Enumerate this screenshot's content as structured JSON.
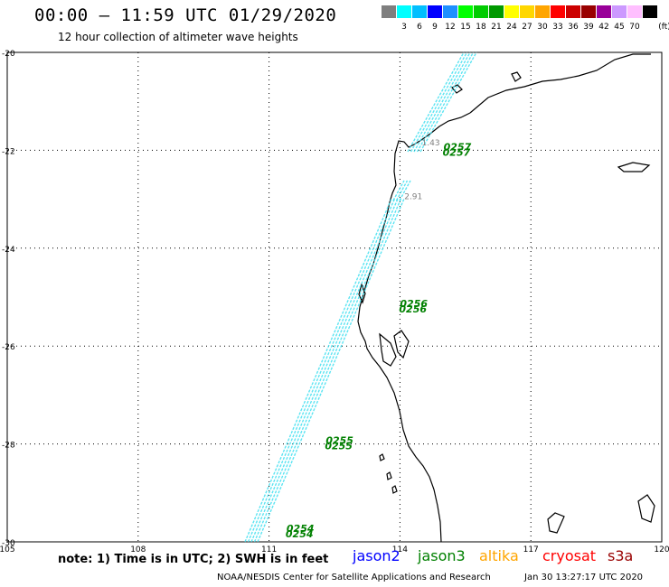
{
  "header": {
    "title": "00:00 – 11:59 UTC 01/29/2020",
    "subtitle": "12 hour collection of altimeter wave heights"
  },
  "scale": {
    "unit": "(ft)",
    "bins": [
      {
        "label": "",
        "color": "#7f7f7f"
      },
      {
        "label": "3",
        "color": "#00ffff"
      },
      {
        "label": "6",
        "color": "#00bfff"
      },
      {
        "label": "9",
        "color": "#0000ff"
      },
      {
        "label": "12",
        "color": "#1e90ff"
      },
      {
        "label": "15",
        "color": "#00ff00"
      },
      {
        "label": "18",
        "color": "#00cc00"
      },
      {
        "label": "21",
        "color": "#009900"
      },
      {
        "label": "24",
        "color": "#ffff00"
      },
      {
        "label": "27",
        "color": "#ffd700"
      },
      {
        "label": "30",
        "color": "#ffa500"
      },
      {
        "label": "33",
        "color": "#ff0000"
      },
      {
        "label": "36",
        "color": "#cc0000"
      },
      {
        "label": "39",
        "color": "#990000"
      },
      {
        "label": "42",
        "color": "#990099"
      },
      {
        "label": "45",
        "color": "#cc99ff"
      },
      {
        "label": "70",
        "color": "#ffbfff"
      },
      {
        "label": "",
        "color": "#000000"
      }
    ]
  },
  "map": {
    "lat_range": [
      -30,
      -20
    ],
    "lon_range": [
      105,
      120
    ],
    "lat_labels": [
      "-20",
      "-22",
      "-24",
      "-26",
      "-28",
      "-30"
    ],
    "lon_labels": [
      "105",
      "108",
      "111",
      "114",
      "117",
      "120"
    ],
    "track_color": "#40e0f0",
    "label_color": "#008000",
    "pass_labels": [
      {
        "text": "0257",
        "lon": 115.0,
        "lat": -22.0
      },
      {
        "text": "0256",
        "lon": 114.0,
        "lat": -25.2
      },
      {
        "text": "0255",
        "lon": 112.3,
        "lat": -28.0
      },
      {
        "text": "0254",
        "lon": 111.4,
        "lat": -29.8
      }
    ],
    "swh_labels": [
      {
        "text": "2.91",
        "lon": 114.1,
        "lat": -23.0
      },
      {
        "text": "1.43",
        "lon": 114.5,
        "lat": -21.9
      }
    ]
  },
  "footer": {
    "note": "note: 1) Time is in UTC; 2) SWH is in feet",
    "legend": [
      {
        "name": "jason2",
        "color": "#0000ff"
      },
      {
        "name": "jason3",
        "color": "#008000"
      },
      {
        "name": "altika",
        "color": "#ffa500"
      },
      {
        "name": "cryosat",
        "color": "#ff0000"
      },
      {
        "name": "s3a",
        "color": "#990000"
      }
    ],
    "credit": "NOAA/NESDIS Center for Satellite Applications and Research",
    "timestamp": "Jan 30 13:27:17 UTC 2020"
  }
}
